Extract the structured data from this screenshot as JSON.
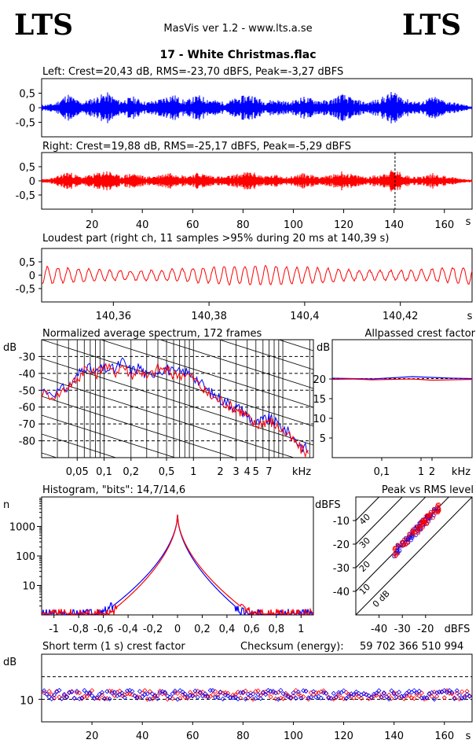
{
  "header": {
    "logo_left": "LTS",
    "logo_right": "LTS",
    "app": "MasVis ver 1.2 - www.lts.a.se",
    "track": "17 - White Christmas.flac"
  },
  "colors": {
    "left": "#0000ff",
    "right": "#ff0000"
  },
  "chart_data": [
    {
      "id": "left",
      "type": "area",
      "title": "Left: Crest=20,43 dB, RMS=-23,70 dBFS, Peak=-3,27 dBFS",
      "ytick_labels": [
        "0,5",
        "0",
        "-0,5"
      ],
      "ylim": [
        -1,
        1
      ],
      "xlim": [
        0,
        171
      ],
      "series": [
        {
          "values": [
            0.1,
            0.15,
            0.5,
            0.2,
            0.35,
            0.55,
            0.25,
            0.4,
            0.2,
            0.3,
            0.5,
            0.25,
            0.45,
            0.3,
            0.2,
            0.35,
            0.5,
            0.25,
            0.3,
            0.2,
            0.4,
            0.3,
            0.25,
            0.5,
            0.3,
            0.2,
            0.35,
            0.6,
            0.3,
            0.2,
            0.4,
            0.25,
            0.15,
            0.05
          ]
        }
      ]
    },
    {
      "id": "right",
      "type": "area",
      "title": "Right: Crest=19,88 dB, RMS=-25,17 dBFS, Peak=-5,29 dBFS",
      "ytick_labels": [
        "0,5",
        "0",
        "-0,5"
      ],
      "ylim": [
        -1,
        1
      ],
      "xlim": [
        0,
        171
      ],
      "xticks": [
        20,
        40,
        60,
        80,
        100,
        120,
        140,
        160
      ],
      "xtick_labels": [
        "20",
        "40",
        "60",
        "80",
        "100",
        "120",
        "140",
        "160"
      ],
      "xunit": "s",
      "marker_x": 140.39,
      "series": [
        {
          "values": [
            0.05,
            0.12,
            0.35,
            0.15,
            0.25,
            0.4,
            0.18,
            0.3,
            0.15,
            0.22,
            0.35,
            0.18,
            0.3,
            0.2,
            0.15,
            0.25,
            0.35,
            0.18,
            0.22,
            0.15,
            0.28,
            0.2,
            0.18,
            0.35,
            0.22,
            0.15,
            0.25,
            0.42,
            0.2,
            0.15,
            0.28,
            0.18,
            0.1,
            0.03
          ]
        }
      ]
    },
    {
      "id": "loudest",
      "type": "line",
      "title": "Loudest part (right ch, 11 samples >95% during 20 ms at 140,39 s)",
      "ytick_labels": [
        "0,5",
        "0",
        "-0,5"
      ],
      "ylim": [
        -1,
        1
      ],
      "xlim": [
        140.345,
        140.435
      ],
      "xticks": [
        140.36,
        140.38,
        140.4,
        140.42
      ],
      "xtick_labels": [
        "140,36",
        "140,38",
        "140,4",
        "140,42"
      ],
      "xunit": "s",
      "freq_hz": 460,
      "amplitude": 0.35
    },
    {
      "id": "spectrum",
      "type": "line",
      "title": "Normalized average spectrum, 172 frames",
      "ylabel": "dB",
      "xunit": "kHz",
      "xlim": [
        0.02,
        22
      ],
      "ylim": [
        -90,
        -20
      ],
      "yticks": [
        -30,
        -40,
        -50,
        -60,
        -70,
        -80
      ],
      "xticks": [
        0.05,
        0.1,
        0.2,
        0.5,
        1,
        2,
        3,
        4,
        5,
        7
      ],
      "xtick_labels": [
        "0,05",
        "0,1",
        "0,2",
        "0,5",
        "1",
        "2",
        "3",
        "4",
        "5",
        "7"
      ],
      "x": [
        0.02,
        0.03,
        0.04,
        0.05,
        0.06,
        0.08,
        0.1,
        0.13,
        0.16,
        0.2,
        0.25,
        0.3,
        0.4,
        0.5,
        0.6,
        0.8,
        1,
        1.3,
        1.6,
        2,
        2.5,
        3,
        3.5,
        4,
        5,
        6,
        7,
        8,
        10,
        13,
        16,
        20
      ],
      "series": [
        {
          "values": [
            -50,
            -51,
            -48,
            -42,
            -35,
            -40,
            -37,
            -38,
            -33,
            -39,
            -36,
            -42,
            -38,
            -37,
            -40,
            -39,
            -41,
            -48,
            -52,
            -55,
            -58,
            -60,
            -62,
            -65,
            -70,
            -68,
            -67,
            -69,
            -72,
            -78,
            -83,
            -86
          ]
        },
        {
          "values": [
            -52,
            -53,
            -47,
            -44,
            -37,
            -41,
            -35,
            -40,
            -35,
            -41,
            -38,
            -43,
            -37,
            -38,
            -41,
            -40,
            -43,
            -50,
            -54,
            -56,
            -59,
            -61,
            -63,
            -66,
            -71,
            -69,
            -68,
            -70,
            -74,
            -80,
            -85,
            -88
          ]
        }
      ]
    },
    {
      "id": "crest",
      "type": "line",
      "title": "Allpassed crest factor",
      "ylabel": "dB",
      "xunit": "kHz",
      "ylim": [
        0,
        30
      ],
      "yticks": [
        20,
        15,
        10,
        5
      ],
      "xticks": [
        0.1,
        1,
        2
      ],
      "xtick_labels": [
        "0,1",
        "1",
        "2"
      ],
      "reference_db": 20.1,
      "series": [
        {
          "values": [
            20.2,
            20.1,
            20.0,
            20.3,
            20.6,
            20.4,
            20.2,
            20.1
          ]
        },
        {
          "values": [
            19.9,
            20.0,
            19.8,
            19.9,
            20.0,
            19.7,
            19.8,
            19.9
          ]
        }
      ]
    },
    {
      "id": "histogram",
      "type": "line",
      "title": "Histogram, \"bits\": 14,7/14,6",
      "ylabel": "n",
      "yscale": "log",
      "ylim": [
        1,
        10000
      ],
      "yticks": [
        10,
        100,
        1000
      ],
      "xlim": [
        -1.1,
        1.1
      ],
      "xticks": [
        -1,
        -0.8,
        -0.6,
        -0.4,
        -0.2,
        0,
        0.2,
        0.4,
        0.6,
        0.8,
        1
      ],
      "xtick_labels": [
        "-1",
        "-0,8",
        "-0,6",
        "-0,4",
        "-0,2",
        "0",
        "0,2",
        "0,4",
        "0,6",
        "0,8",
        "1"
      ],
      "peak_n": 2500,
      "halfwidth": {
        "left": 0.62,
        "right": 0.55
      }
    },
    {
      "id": "peakrms",
      "type": "scatter",
      "title": "Peak vs RMS level",
      "ylabel": "dBFS",
      "xunit": "dBFS",
      "xlim": [
        -50,
        0
      ],
      "ylim": [
        -50,
        0
      ],
      "yticks": [
        -10,
        -20,
        -30,
        -40
      ],
      "xticks": [
        -40,
        -30,
        -20
      ],
      "diag_labels": [
        "40",
        "30",
        "20",
        "10",
        "0 dB"
      ],
      "points_center": [
        -24,
        -15
      ]
    },
    {
      "id": "shortcrest",
      "type": "scatter",
      "title": "Short term (1 s) crest factor",
      "checksum_label": "Checksum (energy):",
      "checksum_value": "59 702 366 510 994",
      "ylabel": "dB",
      "ylim": [
        0,
        30
      ],
      "ytick_labels": [
        "10"
      ],
      "xlim": [
        0,
        171
      ],
      "xticks": [
        20,
        40,
        60,
        80,
        100,
        120,
        140,
        160
      ],
      "xtick_labels": [
        "20",
        "40",
        "60",
        "80",
        "100",
        "120",
        "140",
        "160"
      ],
      "xunit": "s",
      "mean_db": 12
    }
  ]
}
